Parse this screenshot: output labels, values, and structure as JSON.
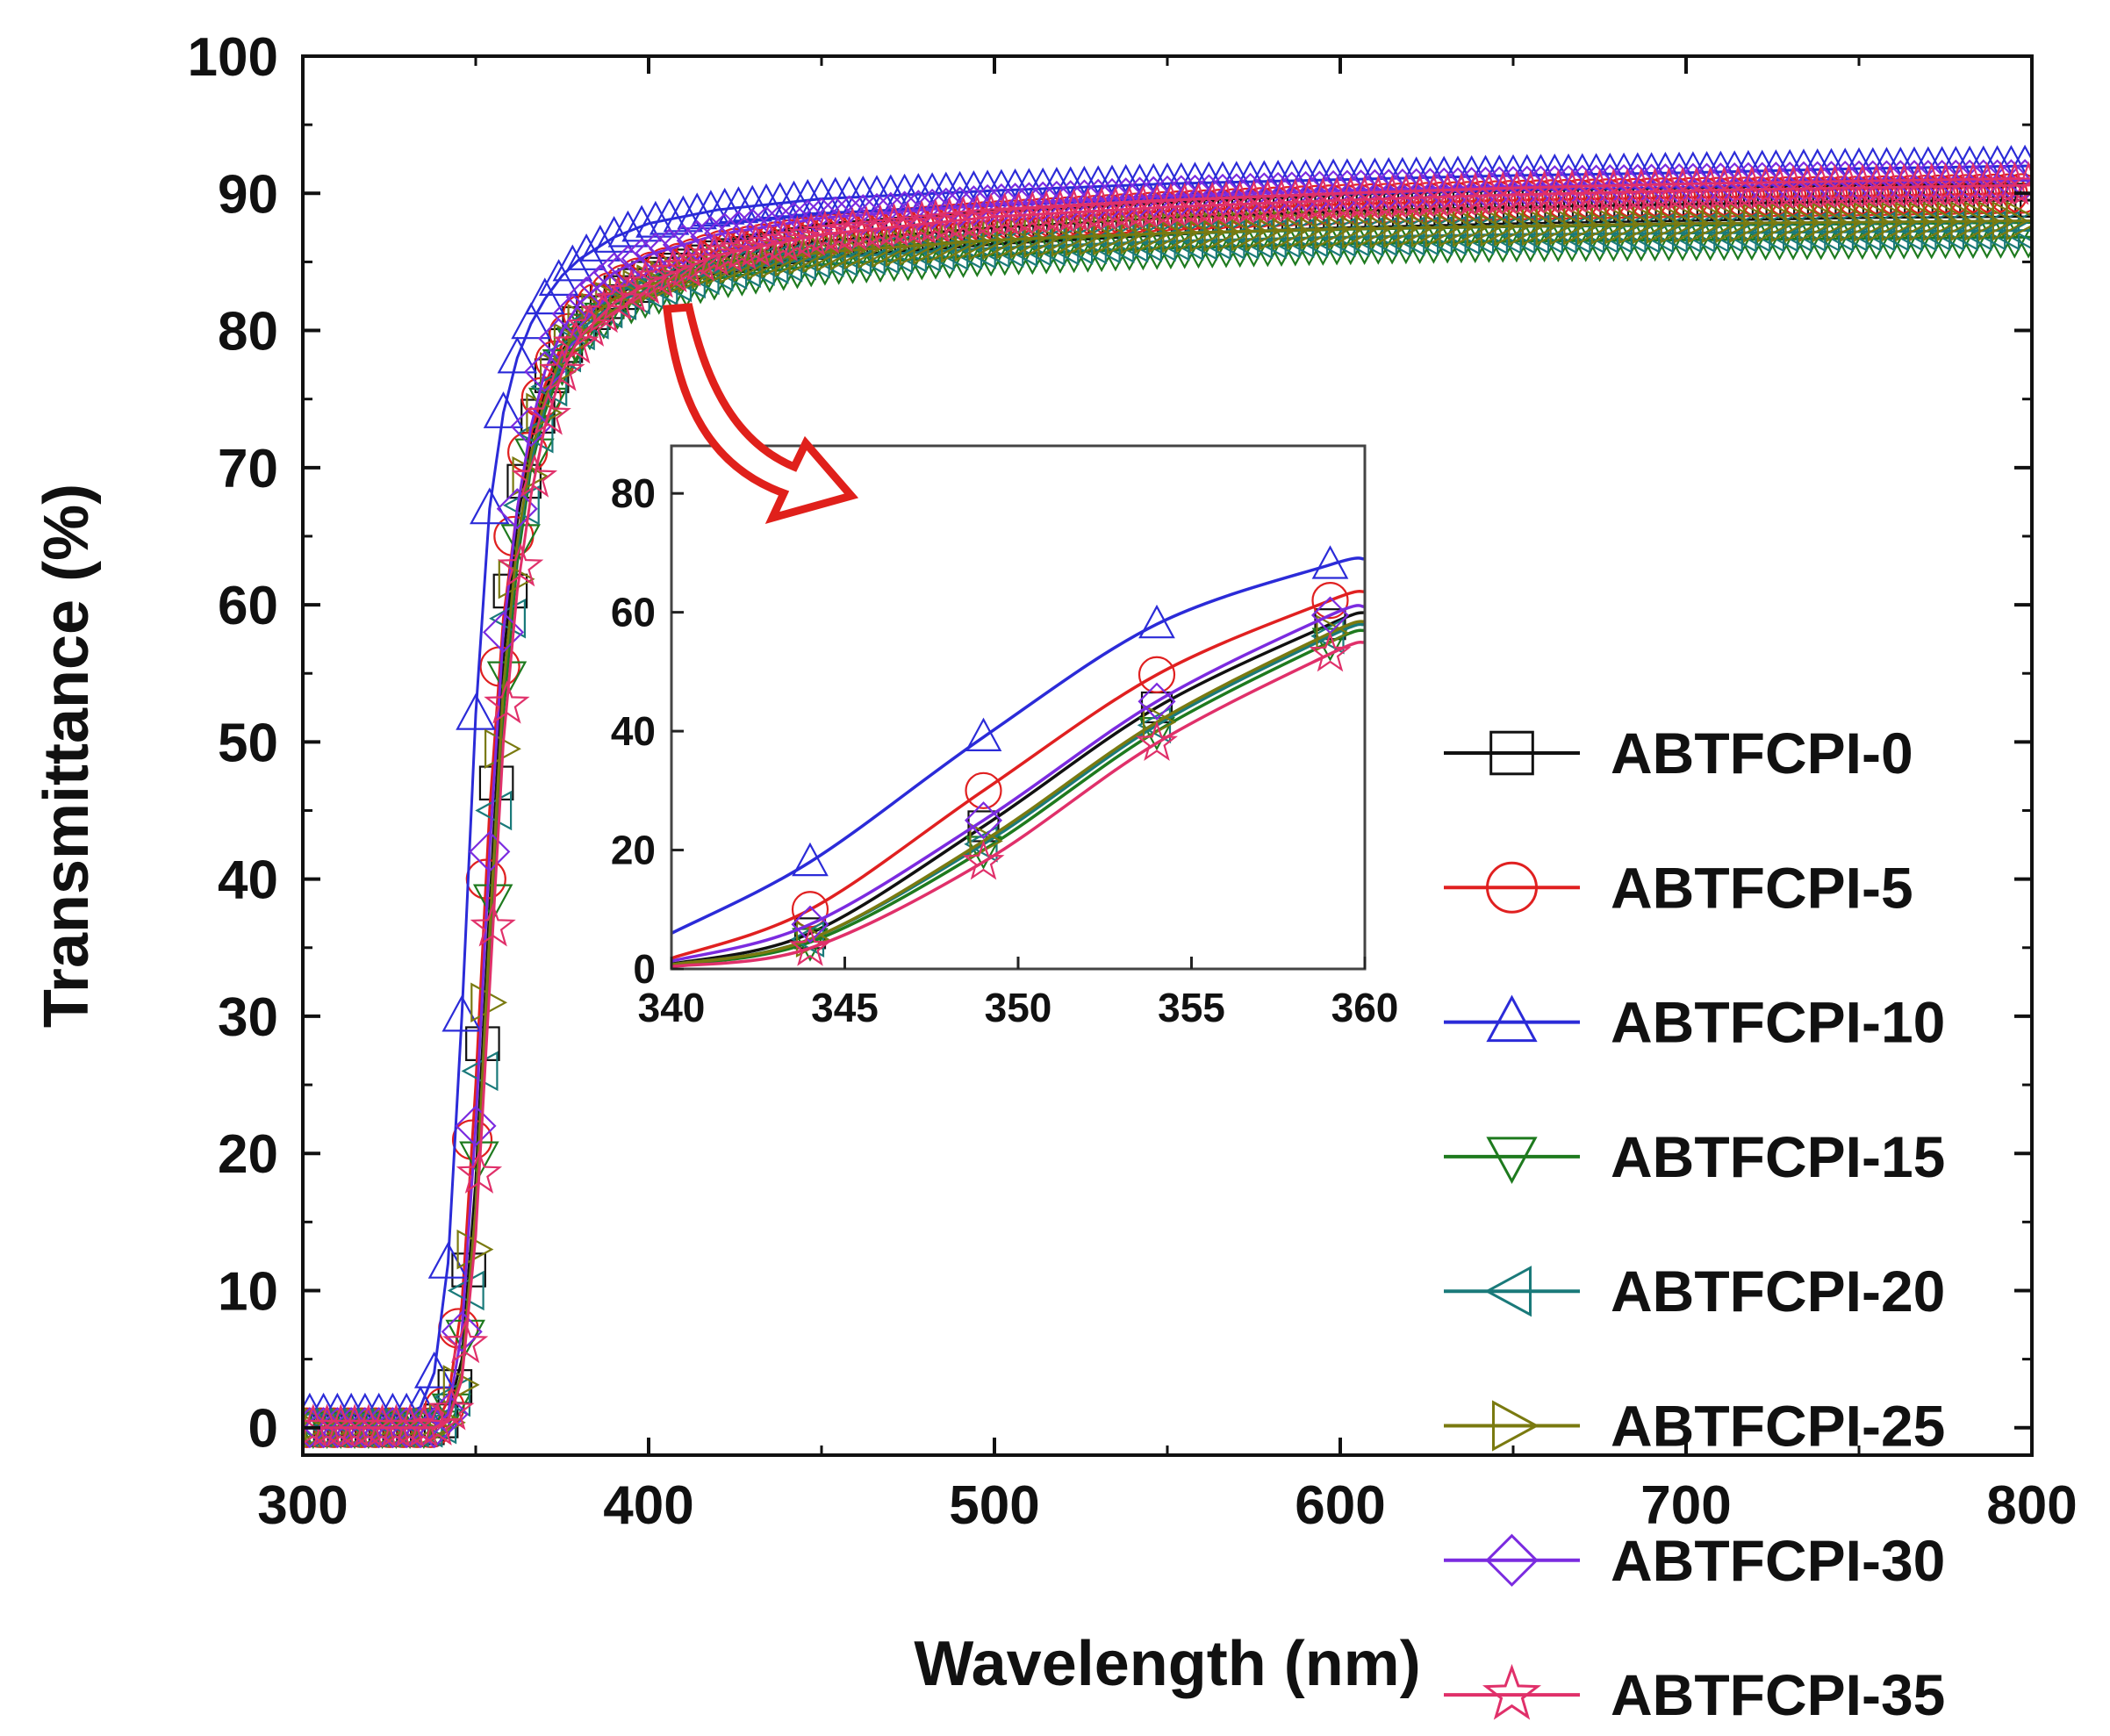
{
  "chart_data": [
    {
      "id": "main",
      "type": "line",
      "title": "",
      "xlabel": "Wavelength (nm)",
      "ylabel": "Transmittance (%)",
      "xlim": [
        300,
        800
      ],
      "ylim": [
        -2,
        100
      ],
      "xticks": [
        300,
        400,
        500,
        600,
        700,
        800
      ],
      "yticks": [
        0,
        10,
        20,
        30,
        40,
        50,
        60,
        70,
        80,
        90,
        100
      ],
      "grid": false,
      "legend_position": "bottom-right",
      "marker_interval_nm": 4,
      "series": [
        {
          "name": "ABTFCPI-0",
          "color": "#111111",
          "marker": "square",
          "x": [
            300,
            330,
            338,
            342,
            346,
            350,
            354,
            358,
            362,
            366,
            370,
            375,
            380,
            390,
            400,
            420,
            450,
            500,
            550,
            600,
            650,
            700,
            750,
            800
          ],
          "y": [
            0,
            0,
            0,
            1,
            5,
            18,
            38,
            56,
            66,
            72,
            75.5,
            78.5,
            80.5,
            82.5,
            83.8,
            85.3,
            86.5,
            87.5,
            88.2,
            88.7,
            89,
            89.2,
            89.4,
            89.5
          ]
        },
        {
          "name": "ABTFCPI-5",
          "color": "#e02020",
          "marker": "circle",
          "x": [
            300,
            330,
            338,
            342,
            346,
            350,
            354,
            358,
            362,
            366,
            370,
            375,
            380,
            390,
            400,
            420,
            450,
            500,
            550,
            600,
            650,
            700,
            750,
            800
          ],
          "y": [
            0,
            0,
            0,
            2,
            9,
            25,
            45,
            59,
            67,
            72.5,
            76,
            79,
            81,
            83,
            84.2,
            85.8,
            87,
            88,
            88.7,
            89.2,
            89.5,
            89.7,
            89.8,
            90
          ]
        },
        {
          "name": "ABTFCPI-10",
          "color": "#2b2bd8",
          "marker": "triangle-up",
          "x": [
            300,
            330,
            334,
            338,
            342,
            346,
            350,
            354,
            358,
            362,
            366,
            370,
            375,
            380,
            390,
            400,
            420,
            450,
            500,
            550,
            600,
            650,
            700,
            750,
            800
          ],
          "y": [
            1,
            1,
            1.5,
            4,
            12,
            30,
            52,
            67,
            74,
            78,
            80.5,
            82.3,
            84,
            85.2,
            86.8,
            87.8,
            88.8,
            89.6,
            90.2,
            90.7,
            91,
            91.3,
            91.5,
            91.8,
            92
          ]
        },
        {
          "name": "ABTFCPI-15",
          "color": "#1e7a1e",
          "marker": "triangle-down",
          "x": [
            300,
            330,
            338,
            342,
            346,
            350,
            354,
            358,
            362,
            366,
            370,
            375,
            380,
            390,
            400,
            420,
            450,
            500,
            550,
            600,
            650,
            700,
            750,
            800
          ],
          "y": [
            0,
            0,
            0,
            0.5,
            4,
            15,
            34,
            52,
            63,
            70,
            74,
            77.5,
            79.5,
            81.5,
            82.5,
            83.8,
            84.8,
            85.5,
            86,
            86.3,
            86.5,
            86.6,
            86.7,
            86.8
          ]
        },
        {
          "name": "ABTFCPI-20",
          "color": "#1a7a7a",
          "marker": "triangle-left",
          "x": [
            300,
            330,
            338,
            342,
            346,
            350,
            354,
            358,
            362,
            366,
            370,
            375,
            380,
            390,
            400,
            420,
            450,
            500,
            550,
            600,
            650,
            700,
            750,
            800
          ],
          "y": [
            0,
            0,
            0,
            0.5,
            4,
            16,
            36,
            54,
            64,
            70.5,
            74.5,
            78,
            80,
            82,
            83,
            84.3,
            85.3,
            86,
            86.5,
            86.8,
            87,
            87.1,
            87.2,
            87.3
          ]
        },
        {
          "name": "ABTFCPI-25",
          "color": "#7a7a10",
          "marker": "triangle-right",
          "x": [
            300,
            330,
            338,
            342,
            346,
            350,
            354,
            358,
            362,
            366,
            370,
            375,
            380,
            390,
            400,
            420,
            450,
            500,
            550,
            600,
            650,
            700,
            750,
            800
          ],
          "y": [
            0,
            0,
            0,
            0.5,
            4,
            16,
            36,
            54,
            64.5,
            71,
            75,
            78.3,
            80.3,
            82.3,
            83.3,
            84.7,
            85.7,
            86.6,
            87.1,
            87.4,
            87.6,
            87.8,
            87.9,
            88
          ]
        },
        {
          "name": "ABTFCPI-30",
          "color": "#7b2be0",
          "marker": "diamond",
          "x": [
            300,
            330,
            338,
            342,
            346,
            350,
            354,
            358,
            362,
            366,
            370,
            375,
            380,
            390,
            400,
            420,
            450,
            500,
            550,
            600,
            650,
            700,
            750,
            800
          ],
          "y": [
            0,
            0,
            0,
            1,
            7,
            22,
            42,
            58,
            67,
            73,
            77,
            80,
            82,
            84.2,
            85.5,
            87,
            88.2,
            89.2,
            89.8,
            90.2,
            90.5,
            90.7,
            90.9,
            91
          ]
        },
        {
          "name": "ABTFCPI-35",
          "color": "#e0306a",
          "marker": "star",
          "x": [
            300,
            330,
            338,
            342,
            346,
            350,
            354,
            358,
            362,
            366,
            370,
            375,
            380,
            390,
            400,
            420,
            450,
            500,
            550,
            600,
            650,
            700,
            750,
            800
          ],
          "y": [
            0,
            0,
            0,
            0.5,
            3.5,
            14,
            32,
            50,
            61,
            68,
            73,
            77,
            79.5,
            82,
            83.5,
            85.5,
            87,
            88.3,
            89,
            89.5,
            89.9,
            90.2,
            90.4,
            90.6
          ]
        }
      ]
    },
    {
      "id": "inset",
      "type": "line",
      "title": "",
      "xlabel": "",
      "ylabel": "",
      "xlim": [
        340,
        360
      ],
      "ylim": [
        0,
        88
      ],
      "xticks": [
        340,
        345,
        350,
        355,
        360
      ],
      "yticks": [
        0,
        20,
        40,
        60,
        80
      ],
      "grid": false,
      "annotation": "arrow from main curve knee pointing to inset",
      "series": [
        {
          "name": "ABTFCPI-0",
          "x": [
            340,
            344,
            349,
            354,
            359,
            360
          ],
          "y": [
            0.8,
            6,
            24,
            44,
            58,
            60
          ]
        },
        {
          "name": "ABTFCPI-5",
          "x": [
            340,
            344,
            349,
            354,
            359,
            360
          ],
          "y": [
            1.8,
            10,
            30,
            49.5,
            62,
            63.5
          ]
        },
        {
          "name": "ABTFCPI-10",
          "x": [
            340,
            344,
            349,
            354,
            359,
            360
          ],
          "y": [
            6,
            18,
            39,
            58,
            68,
            69
          ]
        },
        {
          "name": "ABTFCPI-15",
          "x": [
            340,
            344,
            349,
            354,
            359,
            360
          ],
          "y": [
            0.6,
            4.5,
            20,
            40,
            55,
            57
          ]
        },
        {
          "name": "ABTFCPI-20",
          "x": [
            340,
            344,
            349,
            354,
            359,
            360
          ],
          "y": [
            0.7,
            5,
            21,
            41,
            56,
            58
          ]
        },
        {
          "name": "ABTFCPI-25",
          "x": [
            340,
            344,
            349,
            354,
            359,
            360
          ],
          "y": [
            0.7,
            5,
            21.5,
            41.5,
            56.5,
            58.5
          ]
        },
        {
          "name": "ABTFCPI-30",
          "x": [
            340,
            344,
            349,
            354,
            359,
            360
          ],
          "y": [
            1.3,
            7.5,
            25,
            45,
            59.5,
            61
          ]
        },
        {
          "name": "ABTFCPI-35",
          "x": [
            340,
            344,
            349,
            354,
            359,
            360
          ],
          "y": [
            0.4,
            3.5,
            18,
            38,
            53,
            55
          ]
        }
      ]
    }
  ]
}
